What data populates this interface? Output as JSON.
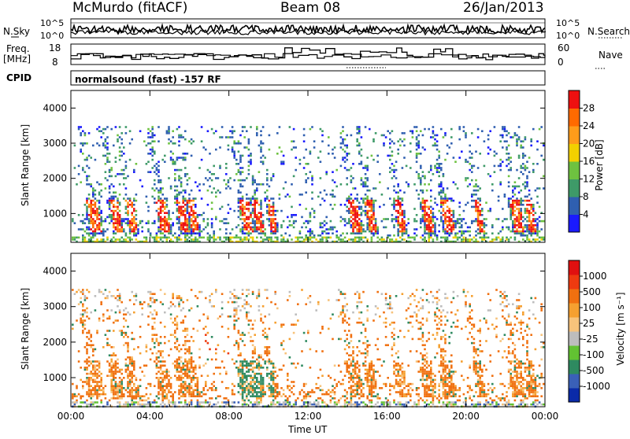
{
  "header": {
    "station": "McMurdo (fitACF)",
    "beam": "Beam 08",
    "date": "26/Jan/2013",
    "cpid_label": "CPID",
    "cpid_text": "normalsound (fast) -157 RF"
  },
  "noise_panel": {
    "left_label": "N.Sky",
    "right_label": "N.Search",
    "right_ticks": [
      "10^5",
      "10^0"
    ],
    "left_ticks": [
      "10^5",
      "10^0"
    ]
  },
  "freq_panel": {
    "left_label_line1": "Freq.",
    "left_label_line2": "[MHz]",
    "left_ticks": [
      "18",
      "8"
    ],
    "right_label": "Nave",
    "right_ticks": [
      "60",
      "0"
    ]
  },
  "colors": {
    "power_scale": [
      "#1a1aff",
      "#2f5fb0",
      "#3e9a68",
      "#6ec240",
      "#f2d000",
      "#ff9c1a",
      "#ff6a00",
      "#ee1010"
    ],
    "velocity_scale": [
      "#0a2aa8",
      "#3a60b8",
      "#2e8a60",
      "#62c232",
      "#bdbdbd",
      "#f7c37b",
      "#f5a030",
      "#f07010",
      "#ee3a10",
      "#e01010"
    ]
  },
  "chart_data": [
    {
      "type": "heatmap",
      "name": "Power",
      "xlabel": "Time UT",
      "ylabel": "Slant Range [km]",
      "x_ticks": [
        "00:00",
        "04:00",
        "08:00",
        "12:00",
        "16:00",
        "20:00",
        "00:00"
      ],
      "x_range_hours": [
        0,
        24
      ],
      "y_ticks": [
        "1000",
        "2000",
        "3000",
        "4000"
      ],
      "y_range_km": [
        180,
        4500
      ],
      "colorbar_label": "Power [dB]",
      "colorbar_ticks": [
        "4",
        "8",
        "12",
        "16",
        "20",
        "24",
        "28"
      ],
      "colorbar_range": [
        0,
        32
      ]
    },
    {
      "type": "heatmap",
      "name": "Velocity",
      "xlabel": "Time UT",
      "ylabel": "Slant Range [km]",
      "x_ticks": [
        "00:00",
        "04:00",
        "08:00",
        "12:00",
        "16:00",
        "20:00",
        "00:00"
      ],
      "x_range_hours": [
        0,
        24
      ],
      "y_ticks": [
        "1000",
        "2000",
        "3000",
        "4000"
      ],
      "y_range_km": [
        180,
        4500
      ],
      "colorbar_label": "Velocity [m s⁻¹]",
      "colorbar_ticks": [
        "1000",
        "500",
        "100",
        "25",
        "-25",
        "-100",
        "-500",
        "-1000"
      ]
    }
  ]
}
